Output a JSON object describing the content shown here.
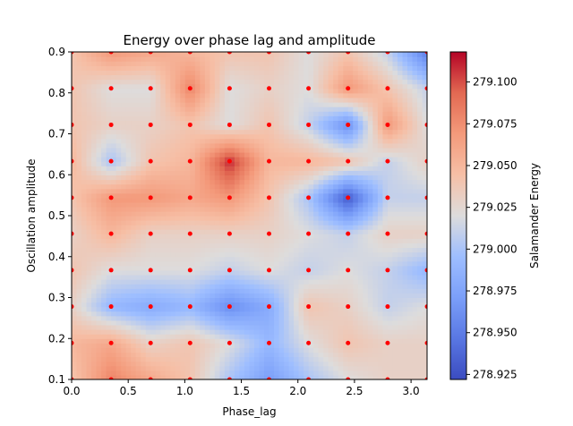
{
  "chart_data": {
    "type": "heatmap",
    "title": "Energy over phase lag and amplitude",
    "xlabel": "Phase_lag",
    "ylabel": "Oscillation amplitude",
    "colorbar_label": "Salamander Energy",
    "colormap": "coolwarm",
    "xlim": [
      0,
      3.14159
    ],
    "ylim": [
      0.1,
      0.9
    ],
    "clim": [
      278.922,
      279.118
    ],
    "x_ticks": [
      0,
      0.5,
      1,
      1.5,
      2,
      2.5,
      3
    ],
    "x_tick_labels": [
      "0.0",
      "0.5",
      "1.0",
      "1.5",
      "2.0",
      "2.5",
      "3.0"
    ],
    "y_ticks": [
      0.1,
      0.2,
      0.3,
      0.4,
      0.5,
      0.6,
      0.7,
      0.8,
      0.9
    ],
    "y_tick_labels": [
      "0.1",
      "0.2",
      "0.3",
      "0.4",
      "0.5",
      "0.6",
      "0.7",
      "0.8",
      "0.9"
    ],
    "colorbar_ticks": [
      278.925,
      278.95,
      278.975,
      279.0,
      279.025,
      279.05,
      279.075,
      279.1
    ],
    "colorbar_tick_labels": [
      "278.925",
      "278.950",
      "278.975",
      "279.000",
      "279.025",
      "279.050",
      "279.075",
      "279.100"
    ],
    "sample_marker_color": "#ff0000",
    "x": [
      0,
      0.349,
      0.698,
      1.047,
      1.396,
      1.745,
      2.094,
      2.443,
      2.793,
      3.142
    ],
    "y": [
      0.1,
      0.189,
      0.278,
      0.367,
      0.456,
      0.544,
      0.633,
      0.722,
      0.811,
      0.9
    ],
    "z": [
      [
        279.04,
        279.08,
        279.06,
        279.04,
        279.0,
        278.97,
        279.0,
        279.02,
        279.03,
        279.03
      ],
      [
        279.05,
        279.06,
        279.03,
        279.04,
        279.02,
        278.99,
        279.02,
        279.04,
        279.03,
        279.03
      ],
      [
        279.03,
        278.99,
        278.98,
        278.99,
        278.96,
        278.98,
        279.04,
        279.03,
        279.01,
        279.02
      ],
      [
        279.04,
        279.02,
        279.02,
        279.02,
        279.01,
        279.02,
        279.01,
        279.02,
        279.01,
        278.99
      ],
      [
        279.03,
        279.05,
        279.03,
        279.03,
        279.03,
        279.03,
        279.02,
        279.01,
        279.03,
        279.03
      ],
      [
        279.04,
        279.07,
        279.07,
        279.06,
        279.07,
        279.04,
        279.0,
        278.93,
        279.01,
        279.01
      ],
      [
        279.05,
        279.0,
        279.04,
        279.05,
        279.11,
        279.05,
        279.05,
        279.04,
        279.01,
        279.03
      ],
      [
        279.04,
        279.03,
        279.03,
        279.04,
        279.02,
        279.04,
        279.01,
        278.96,
        279.07,
        279.02
      ],
      [
        279.04,
        279.02,
        279.02,
        279.08,
        279.02,
        279.03,
        279.02,
        279.07,
        279.04,
        279.01
      ],
      [
        279.04,
        279.07,
        279.06,
        279.05,
        279.04,
        279.04,
        279.02,
        279.04,
        279.01,
        278.95
      ]
    ]
  }
}
